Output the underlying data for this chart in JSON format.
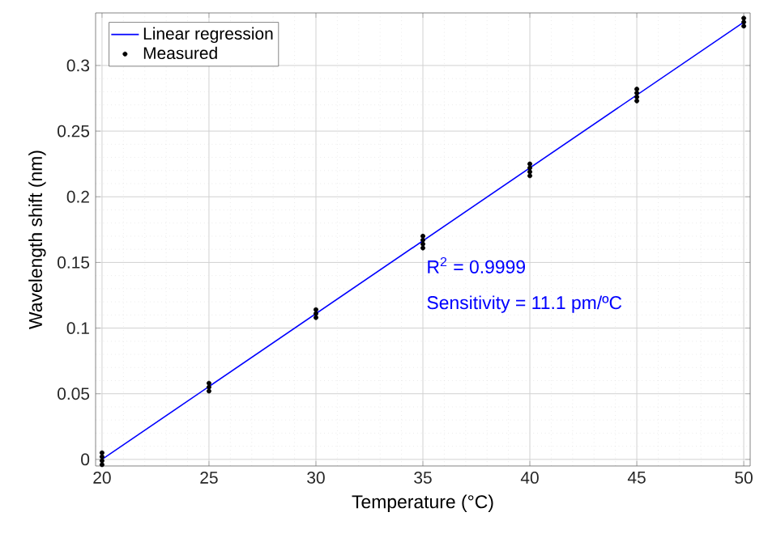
{
  "chart_data": {
    "type": "scatter",
    "xlabel": "Temperature (°C)",
    "ylabel": "Wavelength shift (nm)",
    "xlim": [
      19.7,
      50.3
    ],
    "ylim": [
      -0.005,
      0.34
    ],
    "xticks": [
      20,
      25,
      30,
      35,
      40,
      45,
      50
    ],
    "yticks": [
      0,
      0.05,
      0.1,
      0.15,
      0.2,
      0.25,
      0.3
    ],
    "grid": true,
    "legend": "top left",
    "series": [
      {
        "name": "Linear regression",
        "type": "line",
        "color": "#0000ff",
        "marker": "none",
        "x": [
          20,
          50
        ],
        "values": [
          0.0,
          0.333
        ]
      },
      {
        "name": "Measured",
        "color": "#000000",
        "marker": "circle",
        "x": [
          20,
          20,
          20,
          20,
          25,
          25,
          25,
          30,
          30,
          30,
          35,
          35,
          35,
          35,
          40,
          40,
          40,
          40,
          45,
          45,
          45,
          45,
          50,
          50,
          50
        ],
        "values": [
          -0.004,
          -0.001,
          0.002,
          0.005,
          0.052,
          0.055,
          0.058,
          0.108,
          0.111,
          0.114,
          0.161,
          0.164,
          0.167,
          0.17,
          0.216,
          0.219,
          0.222,
          0.225,
          0.273,
          0.276,
          0.279,
          0.282,
          0.33,
          0.333,
          0.336
        ]
      }
    ],
    "annotations": [
      "R$^{2}$ = 0.9999",
      "Sensitivity = 11.1 pm/ºC"
    ]
  }
}
